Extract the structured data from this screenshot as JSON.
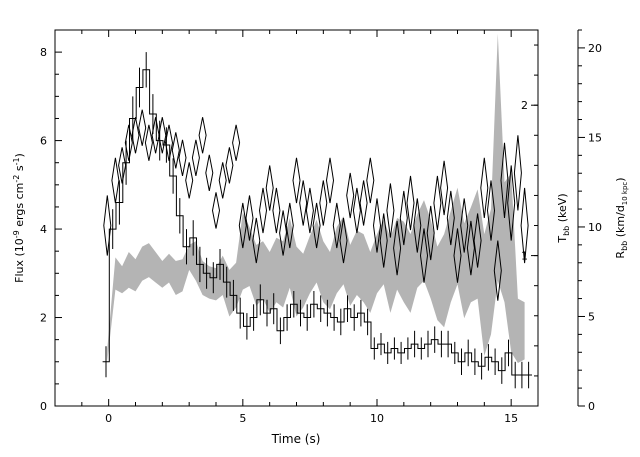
{
  "chart_data": {
    "type": "line",
    "xlabel": "Time (s)",
    "xlim": [
      -2,
      16
    ],
    "x_ticks": [
      "0",
      "5",
      "10",
      "15"
    ],
    "y_left": {
      "label_main": "Flux (10",
      "label_sup1": "-9",
      "label_mid": " ergs cm",
      "label_sup2": "-2",
      "label_mid2": " s",
      "label_sup3": "-1",
      "label_end": ")",
      "ylim": [
        0,
        8.5
      ],
      "ticks": [
        "0",
        "2",
        "4",
        "6",
        "8"
      ]
    },
    "y_right_temperature": {
      "label_main": "T",
      "label_sub": "bb",
      "label_end": " (keV)",
      "ylim": [
        0,
        2.5
      ],
      "ticks": [
        "1",
        "2"
      ]
    },
    "y_right_radius": {
      "label_main": "R",
      "label_sub": "bb",
      "label_mid": " (km/d",
      "label_sub2": "10 kpc",
      "label_end": ")",
      "ylim": [
        0,
        21
      ],
      "ticks": [
        "0",
        "5",
        "10",
        "15",
        "20"
      ]
    },
    "series": [
      {
        "id": "flux",
        "style": "histogram",
        "axis": "left",
        "color": "#000000",
        "bin_width": 0.25,
        "x": [
          -0.1,
          0.15,
          0.4,
          0.65,
          0.9,
          1.15,
          1.4,
          1.65,
          1.9,
          2.15,
          2.4,
          2.65,
          2.9,
          3.15,
          3.4,
          3.65,
          3.9,
          4.15,
          4.4,
          4.65,
          4.9,
          5.15,
          5.4,
          5.65,
          5.9,
          6.15,
          6.4,
          6.65,
          6.9,
          7.15,
          7.4,
          7.65,
          7.9,
          8.15,
          8.4,
          8.65,
          8.9,
          9.15,
          9.4,
          9.65,
          9.9,
          10.15,
          10.4,
          10.65,
          10.9,
          11.15,
          11.4,
          11.65,
          11.9,
          12.15,
          12.4,
          12.65,
          12.9,
          13.15,
          13.4,
          13.65,
          13.9,
          14.15,
          14.4,
          14.65,
          14.9,
          15.15,
          15.4,
          15.65
        ],
        "values": [
          1.0,
          4.0,
          4.6,
          5.5,
          6.5,
          7.2,
          7.6,
          6.6,
          6.0,
          5.9,
          5.2,
          4.3,
          3.6,
          3.8,
          3.2,
          3.0,
          2.9,
          3.2,
          2.8,
          2.5,
          2.1,
          1.8,
          2.0,
          2.4,
          2.1,
          2.2,
          1.7,
          2.0,
          2.3,
          2.1,
          2.0,
          2.3,
          2.2,
          2.1,
          2.0,
          1.9,
          2.2,
          2.0,
          2.1,
          1.9,
          1.3,
          1.4,
          1.2,
          1.3,
          1.2,
          1.3,
          1.4,
          1.3,
          1.4,
          1.5,
          1.4,
          1.4,
          1.2,
          1.0,
          1.2,
          1.0,
          0.9,
          1.1,
          1.0,
          0.8,
          1.2,
          0.7,
          0.7,
          0.7
        ],
        "errors": [
          0.35,
          0.45,
          0.5,
          0.5,
          0.5,
          0.45,
          0.4,
          0.45,
          0.45,
          0.4,
          0.4,
          0.4,
          0.4,
          0.4,
          0.4,
          0.35,
          0.35,
          0.35,
          0.35,
          0.35,
          0.35,
          0.3,
          0.3,
          0.35,
          0.3,
          0.35,
          0.3,
          0.3,
          0.3,
          0.3,
          0.3,
          0.3,
          0.3,
          0.3,
          0.3,
          0.3,
          0.3,
          0.3,
          0.3,
          0.3,
          0.25,
          0.25,
          0.25,
          0.25,
          0.25,
          0.25,
          0.3,
          0.25,
          0.3,
          0.3,
          0.3,
          0.3,
          0.25,
          0.3,
          0.3,
          0.3,
          0.3,
          0.3,
          0.3,
          0.3,
          0.3,
          0.3,
          0.3,
          0.3
        ]
      },
      {
        "id": "temperature",
        "style": "diamonds",
        "axis": "right-temperature",
        "color": "#000000",
        "x": [
          -0.05,
          0.25,
          0.5,
          0.75,
          1.0,
          1.25,
          1.5,
          1.75,
          2.0,
          2.25,
          2.5,
          2.75,
          3.0,
          3.25,
          3.5,
          3.75,
          4.0,
          4.25,
          4.5,
          4.75,
          5.0,
          5.25,
          5.5,
          5.75,
          6.0,
          6.25,
          6.5,
          6.75,
          7.0,
          7.25,
          7.5,
          7.75,
          8.0,
          8.25,
          8.5,
          8.75,
          9.0,
          9.25,
          9.5,
          9.75,
          10.0,
          10.25,
          10.5,
          10.75,
          11.0,
          11.25,
          11.5,
          11.75,
          12.0,
          12.25,
          12.5,
          12.75,
          13.0,
          13.25,
          13.5,
          13.75,
          14.0,
          14.25,
          14.5,
          14.75,
          15.0,
          15.25,
          15.5
        ],
        "values": [
          1.2,
          1.5,
          1.6,
          1.75,
          1.8,
          1.85,
          1.75,
          1.8,
          1.8,
          1.75,
          1.7,
          1.65,
          1.5,
          1.65,
          1.8,
          1.55,
          1.3,
          1.5,
          1.6,
          1.75,
          1.2,
          1.25,
          1.1,
          1.3,
          1.45,
          1.3,
          1.15,
          1.2,
          1.5,
          1.35,
          1.3,
          1.2,
          1.35,
          1.5,
          1.2,
          1.1,
          1.4,
          1.3,
          1.35,
          1.5,
          1.2,
          1.1,
          1.3,
          1.05,
          1.25,
          1.35,
          1.2,
          1.0,
          1.15,
          1.35,
          1.45,
          1.25,
          1.0,
          1.2,
          1.05,
          1.1,
          1.45,
          1.3,
          0.9,
          1.5,
          1.35,
          1.55,
          1.2
        ],
        "errors": [
          0.2,
          0.15,
          0.12,
          0.12,
          0.12,
          0.12,
          0.12,
          0.12,
          0.12,
          0.12,
          0.12,
          0.12,
          0.12,
          0.12,
          0.12,
          0.12,
          0.12,
          0.12,
          0.12,
          0.12,
          0.15,
          0.15,
          0.15,
          0.15,
          0.15,
          0.15,
          0.15,
          0.15,
          0.15,
          0.15,
          0.15,
          0.15,
          0.15,
          0.15,
          0.15,
          0.15,
          0.15,
          0.15,
          0.15,
          0.15,
          0.18,
          0.18,
          0.18,
          0.18,
          0.18,
          0.18,
          0.18,
          0.18,
          0.18,
          0.18,
          0.18,
          0.18,
          0.18,
          0.18,
          0.18,
          0.18,
          0.2,
          0.2,
          0.2,
          0.25,
          0.25,
          0.25,
          0.25
        ]
      },
      {
        "id": "radius",
        "style": "band",
        "axis": "right-radius",
        "color": "#b4b4b4",
        "x": [
          -0.05,
          0.25,
          0.5,
          0.75,
          1.0,
          1.25,
          1.5,
          1.75,
          2.0,
          2.25,
          2.5,
          2.75,
          3.0,
          3.25,
          3.5,
          3.75,
          4.0,
          4.25,
          4.5,
          4.75,
          5.0,
          5.25,
          5.5,
          5.75,
          6.0,
          6.25,
          6.5,
          6.75,
          7.0,
          7.25,
          7.5,
          7.75,
          8.0,
          8.25,
          8.5,
          8.75,
          9.0,
          9.25,
          9.5,
          9.75,
          10.0,
          10.25,
          10.5,
          10.75,
          11.0,
          11.25,
          11.5,
          11.75,
          12.0,
          12.25,
          12.5,
          12.75,
          13.0,
          13.25,
          13.5,
          13.75,
          14.0,
          14.25,
          14.5,
          14.75,
          15.0,
          15.25,
          15.5
        ],
        "low": [
          2.5,
          6.5,
          6.3,
          6.6,
          6.4,
          7.0,
          7.2,
          6.9,
          6.6,
          6.9,
          6.2,
          6.4,
          7.6,
          7.0,
          6.2,
          6.0,
          5.9,
          6.2,
          5.0,
          5.5,
          6.5,
          6.7,
          5.6,
          6.0,
          5.2,
          5.8,
          5.5,
          6.6,
          5.0,
          5.5,
          6.3,
          6.9,
          5.8,
          5.4,
          6.3,
          6.8,
          5.6,
          6.2,
          5.8,
          5.2,
          6.3,
          6.8,
          5.2,
          6.5,
          5.8,
          5.2,
          6.6,
          7.0,
          6.0,
          4.8,
          4.4,
          5.8,
          6.8,
          4.9,
          5.8,
          6.0,
          2.8,
          4.0,
          7.0,
          5.8,
          3.0,
          2.4,
          2.6
        ],
        "high": [
          3.2,
          8.3,
          7.8,
          8.6,
          8.2,
          8.9,
          9.1,
          8.6,
          8.1,
          8.5,
          8.1,
          8.2,
          9.0,
          9.2,
          8.1,
          7.8,
          7.7,
          8.4,
          7.6,
          8.0,
          10.8,
          10.0,
          9.0,
          9.2,
          8.6,
          9.4,
          9.2,
          10.5,
          8.9,
          8.5,
          9.5,
          10.4,
          9.2,
          8.6,
          10.0,
          10.6,
          9.0,
          9.8,
          9.6,
          8.6,
          9.6,
          10.4,
          9.4,
          10.5,
          10.3,
          9.6,
          10.7,
          11.5,
          10.4,
          8.9,
          9.6,
          10.9,
          12.2,
          10.2,
          11.1,
          12.1,
          9.6,
          11.0,
          20.8,
          12.5,
          13.0,
          6.0,
          5.8
        ]
      }
    ]
  }
}
